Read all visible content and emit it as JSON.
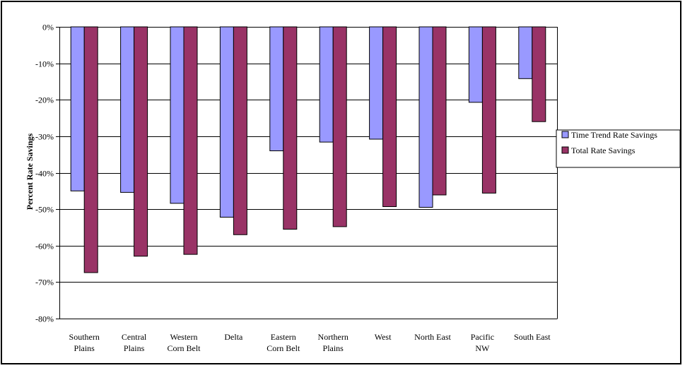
{
  "chart_data": {
    "type": "bar",
    "title": "",
    "xlabel": "",
    "ylabel": "Percent Rate Savings",
    "ylim": [
      -80,
      0
    ],
    "yticks": [
      "0%",
      "-10%",
      "-20%",
      "-30%",
      "-40%",
      "-50%",
      "-60%",
      "-70%",
      "-80%"
    ],
    "ytick_values": [
      0,
      -10,
      -20,
      -30,
      -40,
      -50,
      -60,
      -70,
      -80
    ],
    "grid": true,
    "legend_position": "right",
    "categories": [
      [
        "Southern",
        "Plains"
      ],
      [
        "Central",
        "Plains"
      ],
      [
        "Western",
        "Corn Belt"
      ],
      [
        "Delta"
      ],
      [
        "Eastern",
        "Corn Belt"
      ],
      [
        "Northern",
        "Plains"
      ],
      [
        "West"
      ],
      [
        "North East"
      ],
      [
        "Pacific",
        "NW"
      ],
      [
        "South East"
      ]
    ],
    "series": [
      {
        "name": "Time Trend Rate Savings",
        "color": "#9999ff",
        "values": [
          -45,
          -45.4,
          -48.4,
          -52.2,
          -34,
          -31.6,
          -30.8,
          -49.5,
          -20.7,
          -14.2
        ]
      },
      {
        "name": "Total Rate Savings",
        "color": "#993366",
        "values": [
          -67.4,
          -62.9,
          -62.4,
          -57,
          -55.5,
          -54.8,
          -49.3,
          -46.1,
          -45.6,
          -26
        ]
      }
    ]
  }
}
